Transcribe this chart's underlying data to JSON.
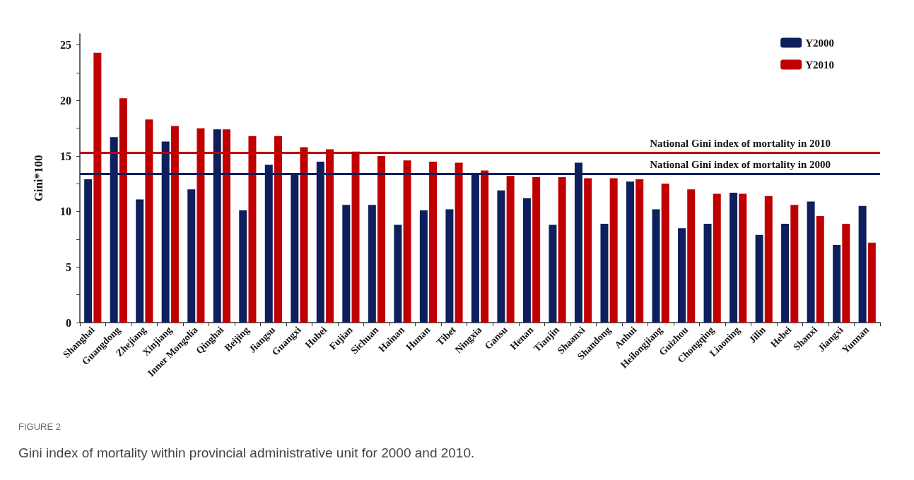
{
  "chart_data": {
    "type": "bar",
    "ylabel": "Gini*100",
    "categories": [
      "Shanghai",
      "Guangdong",
      "Zhejiang",
      "Xinjiang",
      "Inner Mongolia",
      "Qinghai",
      "Beijing",
      "Jiangsu",
      "Guangxi",
      "Hubei",
      "Fujian",
      "Sichuan",
      "Hainan",
      "Hunan",
      "Tibet",
      "Ningxia",
      "Gansu",
      "Henan",
      "Tianjin",
      "Shaanxi",
      "Shandong",
      "Anhui",
      "Heilongjiang",
      "Guizhou",
      "Chongqing",
      "Liaoning",
      "Jilin",
      "Hebei",
      "Shanxi",
      "Jiangxi",
      "Yunnan"
    ],
    "series": [
      {
        "name": "Y2000",
        "color": "#0d1f5c",
        "values": [
          12.9,
          16.7,
          11.1,
          16.3,
          12.0,
          17.4,
          10.1,
          14.2,
          13.4,
          14.5,
          10.6,
          10.6,
          8.8,
          10.1,
          10.2,
          13.4,
          11.9,
          11.2,
          8.8,
          14.4,
          8.9,
          12.7,
          10.2,
          8.5,
          8.9,
          11.7,
          7.9,
          8.9,
          10.9,
          7.0,
          10.5
        ]
      },
      {
        "name": "Y2010",
        "color": "#c00000",
        "values": [
          24.3,
          20.2,
          18.3,
          17.7,
          17.5,
          17.4,
          16.8,
          16.8,
          15.8,
          15.6,
          15.4,
          15.0,
          14.6,
          14.5,
          14.4,
          13.7,
          13.2,
          13.1,
          13.1,
          13.0,
          13.0,
          12.9,
          12.5,
          12.0,
          11.6,
          11.6,
          11.4,
          10.6,
          9.6,
          8.9,
          7.2
        ]
      }
    ],
    "ylim": [
      0,
      26
    ],
    "yticks": [
      0,
      {
        "value": 2.5,
        "label": null
      },
      5,
      {
        "value": 7.5,
        "label": null
      },
      10,
      {
        "value": 12.5,
        "label": null
      },
      15,
      {
        "value": 17.5,
        "label": null
      },
      20,
      {
        "value": 22.5,
        "label": null
      },
      25
    ],
    "ref_lines": [
      {
        "axis": "y",
        "value": 15.3,
        "label": "National Gini index of mortality in 2010",
        "color": "#c00000"
      },
      {
        "axis": "y",
        "value": 13.4,
        "label": "National Gini index of mortality in 2000",
        "color": "#0d1f5c"
      }
    ],
    "grid": false,
    "legend": "top right",
    "annotations": [
      "FIGURE 2",
      "Gini index of mortality within provincial administrative unit for 2000 and 2010."
    ]
  }
}
